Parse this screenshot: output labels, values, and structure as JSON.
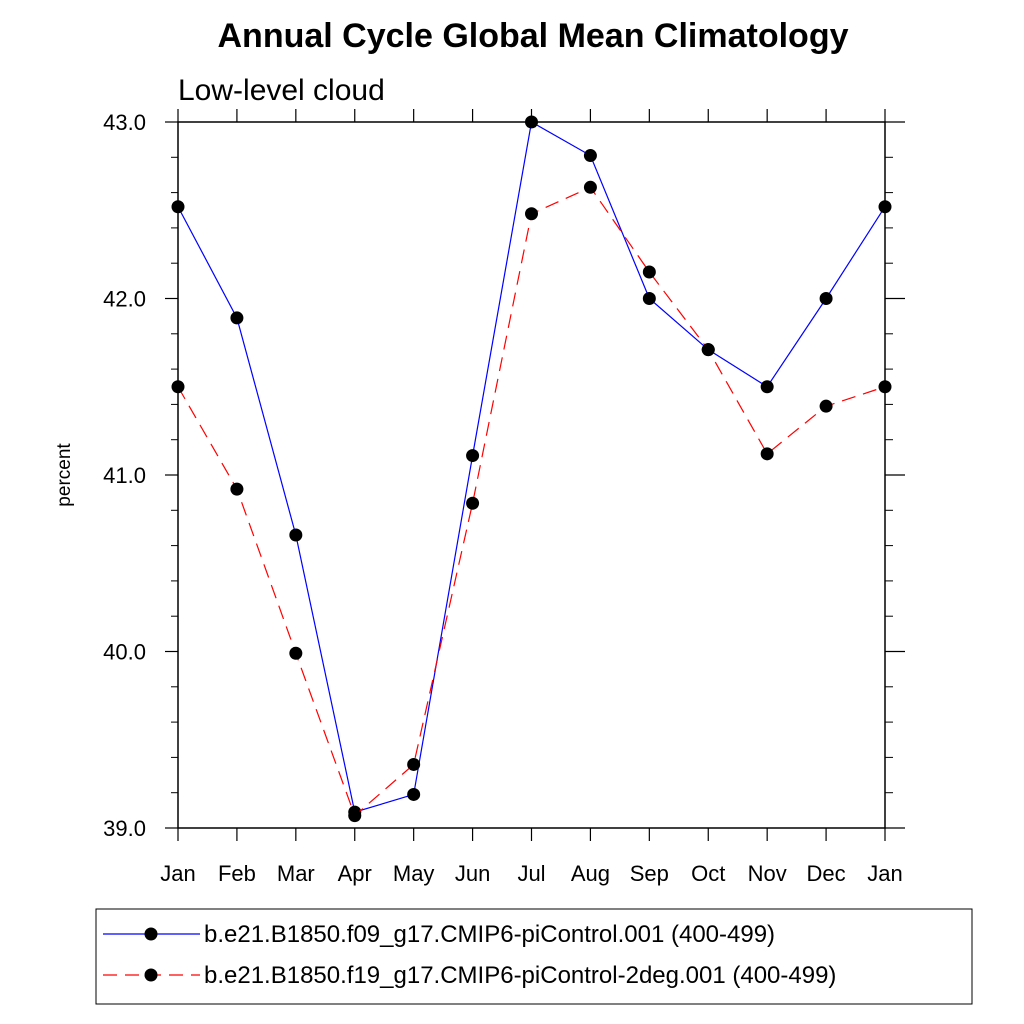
{
  "chart_data": {
    "type": "line",
    "title": "Annual Cycle Global Mean Climatology",
    "subtitle": "Low-level cloud",
    "xlabel": "",
    "ylabel": "percent",
    "categories": [
      "Jan",
      "Feb",
      "Mar",
      "Apr",
      "May",
      "Jun",
      "Jul",
      "Aug",
      "Sep",
      "Oct",
      "Nov",
      "Dec",
      "Jan"
    ],
    "ylim": [
      39.0,
      43.0
    ],
    "yticks": [
      39.0,
      40.0,
      41.0,
      42.0,
      43.0
    ],
    "ytick_labels": [
      "39.0",
      "40.0",
      "41.0",
      "42.0",
      "43.0"
    ],
    "yminor_step": 0.2,
    "grid": false,
    "legend_position": "bottom",
    "series": [
      {
        "name": "b.e21.B1850.f09_g17.CMIP6-piControl.001 (400-499)",
        "color": "#0000ff",
        "dash": "solid",
        "values": [
          42.52,
          41.89,
          40.66,
          39.09,
          39.19,
          41.11,
          43.0,
          42.81,
          42.0,
          41.71,
          41.5,
          42.0,
          42.52
        ]
      },
      {
        "name": "b.e21.B1850.f19_g17.CMIP6-piControl-2deg.001 (400-499)",
        "color": "#ff0000",
        "dash": "dashed",
        "values": [
          41.5,
          40.92,
          39.99,
          39.07,
          39.36,
          40.84,
          42.48,
          42.63,
          42.15,
          41.71,
          41.12,
          41.39,
          41.5
        ]
      }
    ]
  }
}
